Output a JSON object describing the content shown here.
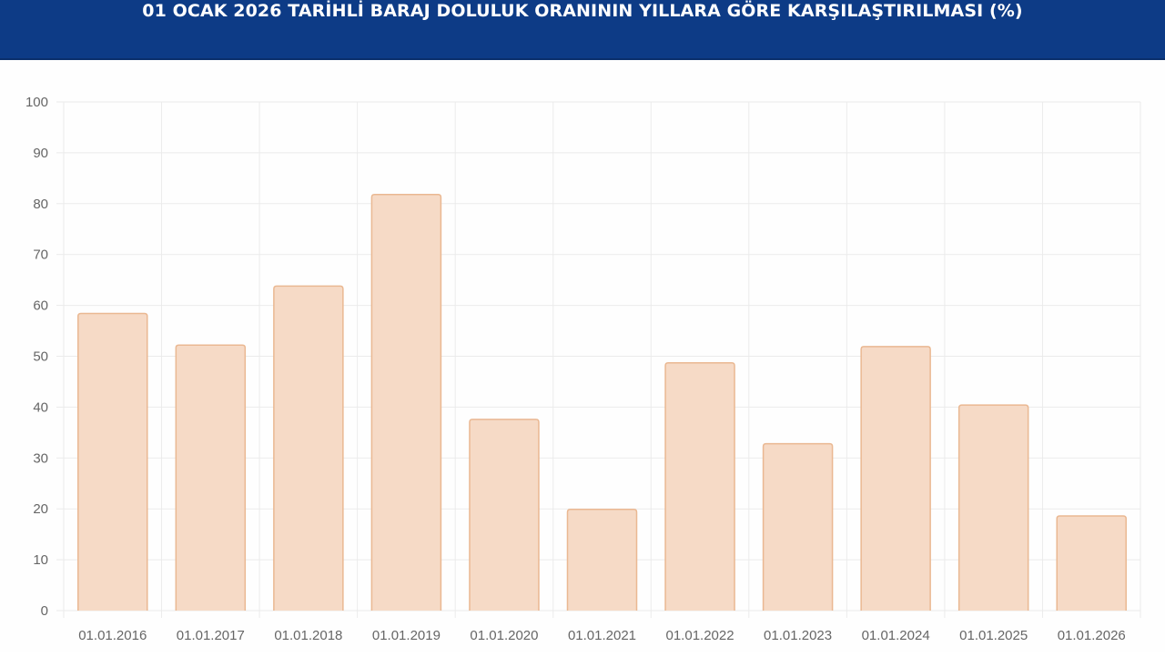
{
  "header": {
    "title": "01 OCAK 2026 TARİHLİ BARAJ DOLULUK ORANININ YILLARA GÖRE KARŞILAŞTIRILMASI (%)"
  },
  "colors": {
    "header_bg": "#0d3b86",
    "bar_fill": "#f6dac6",
    "bar_stroke": "#eab892",
    "grid": "#ebebeb",
    "tick_text": "#666666"
  },
  "chart_data": {
    "type": "bar",
    "title": "01 OCAK 2026 TARİHLİ BARAJ DOLULUK ORANININ YILLARA GÖRE KARŞILAŞTIRILMASI (%)",
    "xlabel": "",
    "ylabel": "",
    "categories": [
      "01.01.2016",
      "01.01.2017",
      "01.01.2018",
      "01.01.2019",
      "01.01.2020",
      "01.01.2021",
      "01.01.2022",
      "01.01.2023",
      "01.01.2024",
      "01.01.2025",
      "01.01.2026"
    ],
    "values": [
      58.4,
      52.2,
      63.8,
      81.8,
      37.6,
      19.9,
      48.7,
      32.8,
      51.9,
      40.4,
      18.6
    ],
    "ylim": [
      0,
      100
    ],
    "yticks": [
      0,
      10,
      20,
      30,
      40,
      50,
      60,
      70,
      80,
      90,
      100
    ],
    "grid": true,
    "legend": "none"
  }
}
